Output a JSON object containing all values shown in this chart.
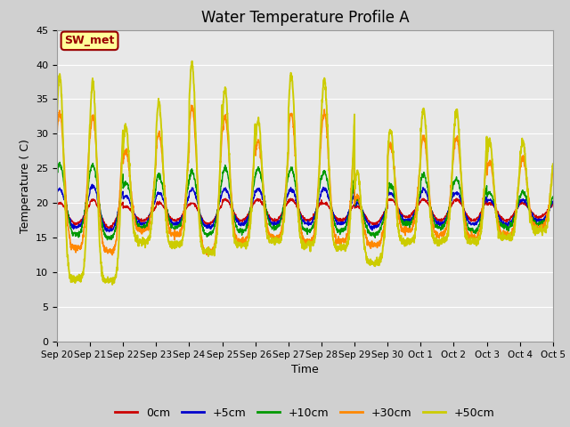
{
  "title": "Water Temperature Profile A",
  "xlabel": "Time",
  "ylabel": "Temperature ( C)",
  "ylim": [
    0,
    45
  ],
  "yticks": [
    0,
    5,
    10,
    15,
    20,
    25,
    30,
    35,
    40,
    45
  ],
  "xlabels": [
    "Sep 20",
    "Sep 21",
    "Sep 22",
    "Sep 23",
    "Sep 24",
    "Sep 25",
    "Sep 26",
    "Sep 27",
    "Sep 28",
    "Sep 29",
    "Sep 30",
    "Oct 1",
    "Oct 2",
    "Oct 3",
    "Oct 4",
    "Oct 5"
  ],
  "series_labels": [
    "0cm",
    "+5cm",
    "+10cm",
    "+30cm",
    "+50cm"
  ],
  "series_colors": [
    "#cc0000",
    "#0000cc",
    "#009900",
    "#ff8800",
    "#cccc00"
  ],
  "annotation_text": "SW_met",
  "annotation_color": "#990000",
  "annotation_bg": "#ffff99",
  "fig_bg": "#d0d0d0",
  "plot_bg": "#e8e8e8",
  "grid_color": "#ffffff",
  "title_fontsize": 12,
  "axis_fontsize": 9,
  "legend_fontsize": 9,
  "num_days": 15,
  "pts_per_day": 144,
  "base_temp": 18.0,
  "trough_temps_50cm": [
    9.0,
    8.8,
    14.5,
    14.0,
    13.0,
    14.0,
    14.5,
    14.0,
    13.5,
    11.5,
    14.5,
    14.5,
    14.5,
    15.0,
    16.0
  ],
  "peak_temps_50cm": [
    38.5,
    37.5,
    31.0,
    34.5,
    40.0,
    36.5,
    32.0,
    38.5,
    38.0,
    24.5,
    30.5,
    33.5,
    33.5,
    29.0,
    29.0
  ],
  "trough_temps_30cm": [
    13.5,
    13.0,
    16.0,
    15.5,
    13.0,
    14.5,
    15.0,
    14.5,
    14.5,
    14.0,
    16.0,
    15.5,
    15.0,
    15.5,
    16.5
  ],
  "peak_temps_30cm": [
    33.0,
    32.5,
    27.5,
    30.0,
    34.0,
    32.5,
    29.0,
    33.0,
    33.0,
    21.0,
    28.5,
    29.5,
    29.5,
    26.0,
    26.5
  ],
  "trough_temps_10cm": [
    15.5,
    15.0,
    16.5,
    16.5,
    15.5,
    16.0,
    16.5,
    16.0,
    16.0,
    15.5,
    17.0,
    16.5,
    16.0,
    16.5,
    17.0
  ],
  "peak_temps_10cm": [
    25.5,
    25.5,
    23.0,
    24.0,
    24.5,
    25.0,
    25.0,
    25.0,
    24.5,
    20.5,
    22.5,
    24.0,
    23.5,
    21.5,
    21.5
  ],
  "trough_temps_5cm": [
    16.5,
    16.0,
    17.0,
    17.0,
    16.5,
    17.0,
    17.0,
    17.0,
    17.0,
    16.5,
    17.5,
    17.0,
    17.0,
    17.0,
    17.5
  ],
  "peak_temps_5cm": [
    22.0,
    22.5,
    21.0,
    21.5,
    22.0,
    22.0,
    22.0,
    22.0,
    22.0,
    20.0,
    21.5,
    22.0,
    21.5,
    20.5,
    20.5
  ],
  "trough_temps_0cm": [
    17.0,
    16.5,
    17.5,
    17.5,
    17.0,
    17.5,
    17.5,
    17.5,
    17.5,
    17.0,
    18.0,
    17.5,
    17.5,
    17.5,
    18.0
  ],
  "peak_temps_0cm": [
    20.0,
    20.5,
    19.5,
    20.0,
    20.0,
    20.5,
    20.5,
    20.5,
    20.0,
    19.5,
    20.5,
    20.5,
    20.5,
    20.0,
    20.0
  ],
  "peak_hour": 0.58,
  "trough_hour": 0.25,
  "spike_sharpness": 4.0
}
